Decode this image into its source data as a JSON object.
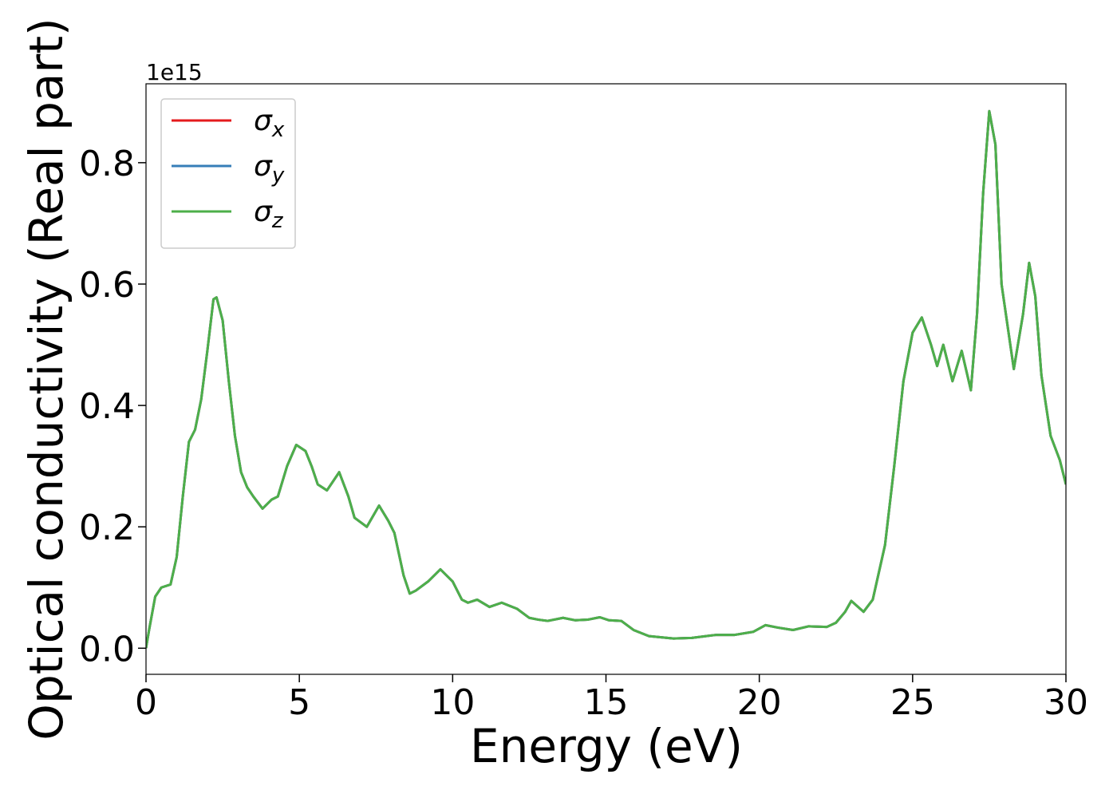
{
  "chart_data": {
    "type": "line",
    "xlabel": "Energy (eV)",
    "ylabel": "Optical conductivity (Real part)",
    "offset_text": "1e15",
    "xlim": [
      0,
      30
    ],
    "xticks": [
      0,
      5,
      10,
      15,
      20,
      25,
      30
    ],
    "ylim": [
      -0.043,
      0.93
    ],
    "yticks": [
      {
        "value": 0,
        "label": "0.0"
      },
      0.2,
      0.4,
      0.6,
      0.8
    ],
    "legend": "upper left",
    "x": [
      0,
      0.1,
      0.3,
      0.5,
      0.8,
      1.0,
      1.2,
      1.4,
      1.6,
      1.8,
      2.0,
      2.2,
      2.3,
      2.5,
      2.7,
      2.9,
      3.1,
      3.3,
      3.5,
      3.8,
      4.1,
      4.3,
      4.6,
      4.9,
      5.2,
      5.4,
      5.6,
      5.9,
      6.3,
      6.6,
      6.8,
      7.2,
      7.6,
      7.9,
      8.1,
      8.4,
      8.6,
      8.8,
      9.2,
      9.6,
      10.0,
      10.3,
      10.5,
      10.8,
      11.2,
      11.6,
      12.1,
      12.5,
      12.8,
      13.1,
      13.6,
      14.0,
      14.4,
      14.8,
      15.1,
      15.5,
      15.9,
      16.4,
      17.2,
      17.8,
      18.6,
      19.2,
      19.8,
      20.2,
      20.6,
      21.1,
      21.6,
      22.2,
      22.5,
      22.8,
      23.0,
      23.4,
      23.7,
      24.1,
      24.4,
      24.7,
      25.0,
      25.3,
      25.6,
      25.8,
      26.0,
      26.3,
      26.6,
      26.9,
      27.1,
      27.3,
      27.5,
      27.7,
      27.9,
      28.3,
      28.6,
      28.8,
      29.0,
      29.2,
      29.5,
      29.8,
      30.0
    ],
    "series": [
      {
        "name": "σx",
        "color": "#e41a1c",
        "values": [
          0,
          0.03,
          0.085,
          0.1,
          0.105,
          0.15,
          0.25,
          0.34,
          0.36,
          0.41,
          0.49,
          0.575,
          0.578,
          0.54,
          0.44,
          0.35,
          0.29,
          0.265,
          0.25,
          0.23,
          0.245,
          0.25,
          0.3,
          0.335,
          0.325,
          0.3,
          0.27,
          0.26,
          0.29,
          0.25,
          0.215,
          0.2,
          0.235,
          0.21,
          0.19,
          0.12,
          0.09,
          0.095,
          0.11,
          0.13,
          0.11,
          0.08,
          0.075,
          0.08,
          0.068,
          0.075,
          0.065,
          0.05,
          0.047,
          0.045,
          0.05,
          0.046,
          0.047,
          0.051,
          0.046,
          0.045,
          0.03,
          0.02,
          0.016,
          0.017,
          0.022,
          0.022,
          0.027,
          0.038,
          0.034,
          0.03,
          0.036,
          0.035,
          0.042,
          0.06,
          0.078,
          0.06,
          0.08,
          0.17,
          0.3,
          0.44,
          0.52,
          0.545,
          0.5,
          0.465,
          0.5,
          0.44,
          0.49,
          0.425,
          0.55,
          0.75,
          0.885,
          0.83,
          0.6,
          0.46,
          0.55,
          0.635,
          0.58,
          0.45,
          0.35,
          0.31,
          0.27
        ]
      },
      {
        "name": "σy",
        "color": "#377eb8",
        "values": [
          0,
          0.03,
          0.085,
          0.1,
          0.105,
          0.15,
          0.25,
          0.34,
          0.36,
          0.41,
          0.49,
          0.575,
          0.578,
          0.54,
          0.44,
          0.35,
          0.29,
          0.265,
          0.25,
          0.23,
          0.245,
          0.25,
          0.3,
          0.335,
          0.325,
          0.3,
          0.27,
          0.26,
          0.29,
          0.25,
          0.215,
          0.2,
          0.235,
          0.21,
          0.19,
          0.12,
          0.09,
          0.095,
          0.11,
          0.13,
          0.11,
          0.08,
          0.075,
          0.08,
          0.068,
          0.075,
          0.065,
          0.05,
          0.047,
          0.045,
          0.05,
          0.046,
          0.047,
          0.051,
          0.046,
          0.045,
          0.03,
          0.02,
          0.016,
          0.017,
          0.022,
          0.022,
          0.027,
          0.038,
          0.034,
          0.03,
          0.036,
          0.035,
          0.042,
          0.06,
          0.078,
          0.06,
          0.08,
          0.17,
          0.3,
          0.44,
          0.52,
          0.545,
          0.5,
          0.465,
          0.5,
          0.44,
          0.49,
          0.425,
          0.55,
          0.75,
          0.885,
          0.83,
          0.6,
          0.46,
          0.55,
          0.635,
          0.58,
          0.45,
          0.35,
          0.31,
          0.27
        ]
      },
      {
        "name": "σz",
        "color": "#4daf4a",
        "values": [
          0,
          0.03,
          0.085,
          0.1,
          0.105,
          0.15,
          0.25,
          0.34,
          0.36,
          0.41,
          0.49,
          0.575,
          0.578,
          0.54,
          0.44,
          0.35,
          0.29,
          0.265,
          0.25,
          0.23,
          0.245,
          0.25,
          0.3,
          0.335,
          0.325,
          0.3,
          0.27,
          0.26,
          0.29,
          0.25,
          0.215,
          0.2,
          0.235,
          0.21,
          0.19,
          0.12,
          0.09,
          0.095,
          0.11,
          0.13,
          0.11,
          0.08,
          0.075,
          0.08,
          0.068,
          0.075,
          0.065,
          0.05,
          0.047,
          0.045,
          0.05,
          0.046,
          0.047,
          0.051,
          0.046,
          0.045,
          0.03,
          0.02,
          0.016,
          0.017,
          0.022,
          0.022,
          0.027,
          0.038,
          0.034,
          0.03,
          0.036,
          0.035,
          0.042,
          0.06,
          0.078,
          0.06,
          0.08,
          0.17,
          0.3,
          0.44,
          0.52,
          0.545,
          0.5,
          0.465,
          0.5,
          0.44,
          0.49,
          0.425,
          0.55,
          0.75,
          0.885,
          0.83,
          0.6,
          0.46,
          0.55,
          0.635,
          0.58,
          0.45,
          0.35,
          0.31,
          0.27
        ]
      }
    ]
  }
}
